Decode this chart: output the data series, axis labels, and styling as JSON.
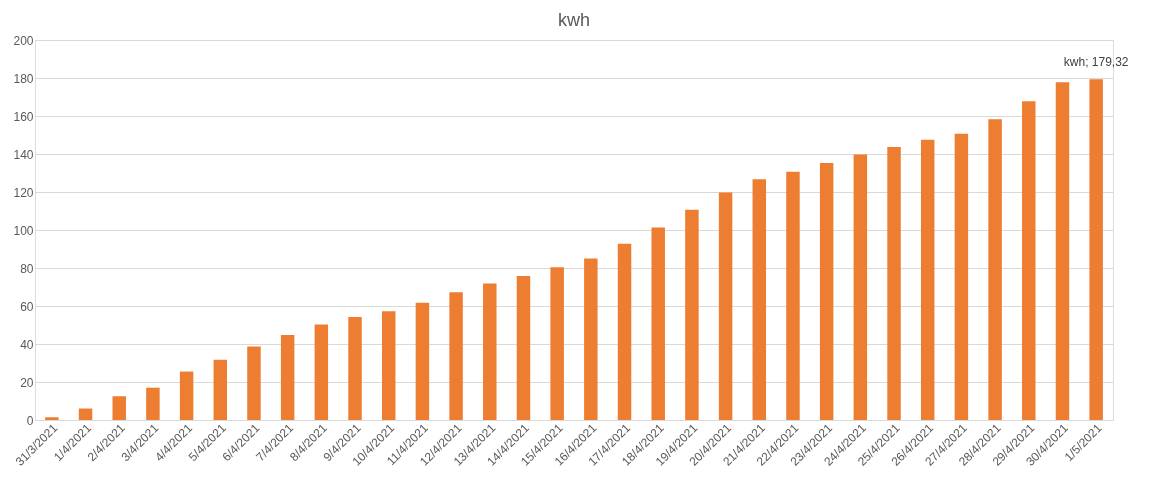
{
  "chart_data": {
    "type": "bar",
    "title": "kwh",
    "categories": [
      "31/3/2021",
      "1/4/2021",
      "2/4/2021",
      "3/4/2021",
      "4/4/2021",
      "5/4/2021",
      "6/4/2021",
      "7/4/2021",
      "8/4/2021",
      "9/4/2021",
      "10/4/2021",
      "11/4/2021",
      "12/4/2021",
      "13/4/2021",
      "14/4/2021",
      "15/4/2021",
      "16/4/2021",
      "17/4/2021",
      "18/4/2021",
      "19/4/2021",
      "20/4/2021",
      "21/4/2021",
      "22/4/2021",
      "23/4/2021",
      "24/4/2021",
      "25/4/2021",
      "26/4/2021",
      "27/4/2021",
      "28/4/2021",
      "29/4/2021",
      "30/4/2021",
      "1/5/2021"
    ],
    "series": [
      {
        "color": "#ed7d31",
        "values": [
          1.5,
          6,
          12.5,
          17,
          25.5,
          31.7,
          38.7,
          44.8,
          50.2,
          54.2,
          57.3,
          61.7,
          67.3,
          71.9,
          75.8,
          80.4,
          85,
          92.7,
          101.3,
          110.6,
          119.8,
          126.7,
          130.6,
          135.2,
          139.8,
          143.7,
          147.5,
          150.6,
          158.3,
          167.7,
          177.7,
          179.32
        ],
        "value_labels": [
          null,
          null,
          null,
          null,
          null,
          null,
          null,
          null,
          null,
          null,
          null,
          null,
          null,
          null,
          null,
          null,
          null,
          null,
          null,
          null,
          null,
          null,
          null,
          null,
          null,
          null,
          null,
          null,
          null,
          null,
          null,
          "kwh; 179,32"
        ]
      }
    ],
    "ylim": [
      0,
      200
    ],
    "yticks": [
      0,
      20,
      40,
      60,
      80,
      100,
      120,
      140,
      160,
      180,
      200
    ],
    "grid": "y"
  }
}
